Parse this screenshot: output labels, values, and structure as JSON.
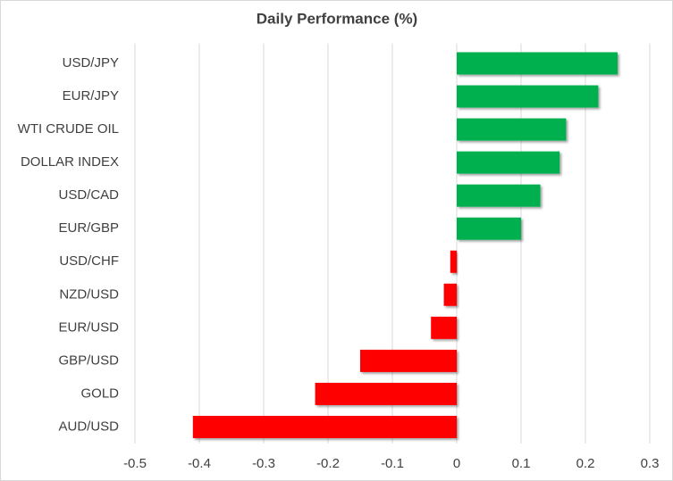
{
  "chart_data": {
    "type": "hbar",
    "title": "Daily Performance  (%)",
    "categories": [
      "USD/JPY",
      "EUR/JPY",
      "WTI CRUDE OIL",
      "DOLLAR INDEX",
      "USD/CAD",
      "EUR/GBP",
      "USD/CHF",
      "NZD/USD",
      "EUR/USD",
      "GBP/USD",
      "GOLD",
      "AUD/USD"
    ],
    "values": [
      0.25,
      0.22,
      0.17,
      0.16,
      0.13,
      0.1,
      -0.01,
      -0.02,
      -0.04,
      -0.15,
      -0.22,
      -0.41
    ],
    "positive_color": "#00b050",
    "negative_color": "#ff0000",
    "xlim": [
      -0.5,
      0.3
    ],
    "xticks": [
      -0.5,
      -0.4,
      -0.3,
      -0.2,
      -0.1,
      0,
      0.1,
      0.2,
      0.3
    ],
    "grid": true
  }
}
